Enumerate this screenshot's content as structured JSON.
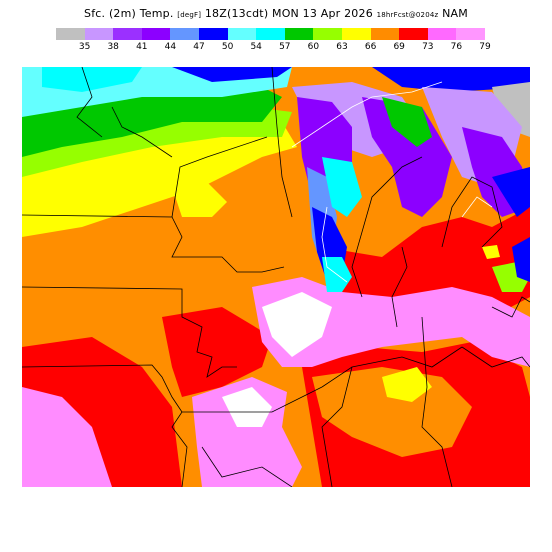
{
  "header": {
    "product": "Sfc. (2m) Temp.",
    "units": "[degF]",
    "valid_time": "18Z(13cdt) MON 13 Apr 2026",
    "run_info": "18hrFcst@0204z",
    "model": "NAM"
  },
  "legend": {
    "ticks": [
      "35",
      "38",
      "41",
      "44",
      "47",
      "50",
      "54",
      "57",
      "60",
      "63",
      "66",
      "69",
      "73",
      "76",
      "79"
    ],
    "colors": [
      "#c0c0c0",
      "#c896ff",
      "#9b30ff",
      "#8c00ff",
      "#6496ff",
      "#0000ff",
      "#64ffff",
      "#00ffff",
      "#00c800",
      "#96ff00",
      "#ffff00",
      "#ff8c00",
      "#ff0000",
      "#ff69ff",
      "#ff96ff",
      "#ffffff"
    ]
  },
  "map": {
    "field_colors": {
      "warmest": "#ffffff",
      "pink": "#ff8cff",
      "red": "#ff0000",
      "orange": "#ff8e00",
      "yellow": "#ffff00",
      "lime": "#96ff00",
      "green": "#00c800",
      "cyan": "#00ffff",
      "sky": "#64ffff",
      "blue": "#0000ff",
      "lightblue": "#6496ff",
      "violet": "#8c00ff",
      "lavender": "#c896ff",
      "gray": "#c0c0c0"
    }
  }
}
